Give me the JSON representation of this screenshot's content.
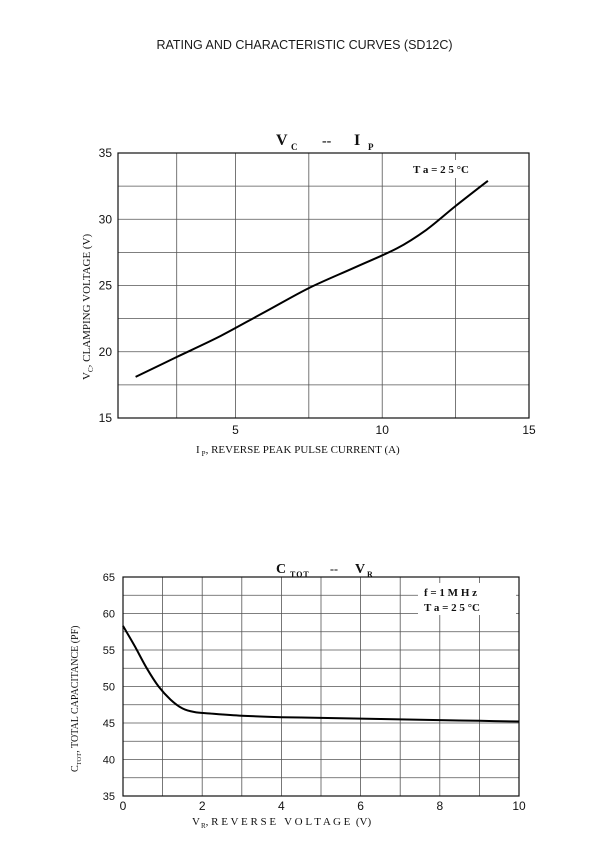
{
  "page": {
    "title": "RATING AND CHARACTERISTIC CURVES (SD12C)"
  },
  "chart_data": [
    {
      "type": "line",
      "title": {
        "main_v": "V",
        "sub_c": "C",
        "dash": "--",
        "main_i": "I",
        "sub_p": "P"
      },
      "annotation": "T a = 2 5 °C",
      "xlabel": {
        "main": "I",
        "sub": "P",
        "rest": ", REVERSE PEAK PULSE CURRENT (A)"
      },
      "ylabel": {
        "main": "V",
        "sub": "C",
        "rest": ", CLAMPING VOLTAGE (V)"
      },
      "xlim": [
        1,
        15
      ],
      "ylim": [
        15,
        35
      ],
      "x_ticks": [
        5,
        10,
        15
      ],
      "y_ticks": [
        15,
        20,
        25,
        30,
        35
      ],
      "x_grid": [
        3,
        5,
        7.5,
        10,
        12.5
      ],
      "y_grid": [
        17.5,
        20,
        22.5,
        25,
        27.5,
        30,
        32.5
      ],
      "series": [
        {
          "x": [
            1.6,
            3.0,
            4.5,
            6.0,
            7.5,
            9.0,
            10.5,
            11.5,
            12.5,
            13.6
          ],
          "y": [
            18.1,
            19.6,
            21.2,
            23.0,
            24.8,
            26.3,
            27.8,
            29.2,
            31.0,
            32.9
          ]
        }
      ]
    },
    {
      "type": "line",
      "title": {
        "main": "C",
        "sub": "TOT",
        "dash": "--",
        "main2": "V",
        "sub2": "R"
      },
      "annotations": [
        "f = 1 M H z",
        "T a = 2 5 °C"
      ],
      "xlabel": {
        "main": "V",
        "sub": "R",
        "rest": ", R E V E R S E   V O L T A G E  (V)"
      },
      "ylabel": {
        "main": "C",
        "sub": "TOT",
        "rest": ", TOTAL CAPACITANCE (PF)"
      },
      "xlim": [
        0,
        10
      ],
      "ylim": [
        35,
        65
      ],
      "x_ticks": [
        0,
        2,
        4,
        6,
        8,
        10
      ],
      "y_ticks": [
        35,
        40,
        45,
        50,
        55,
        60,
        65
      ],
      "x_grid": [
        1,
        2,
        3,
        4,
        5,
        6,
        7,
        8,
        9
      ],
      "y_grid": [
        37.5,
        40,
        42.5,
        45,
        47.5,
        50,
        52.5,
        55,
        57.5,
        60,
        62.5
      ],
      "series": [
        {
          "x": [
            0,
            0.3,
            0.6,
            0.9,
            1.2,
            1.5,
            1.8,
            2.2,
            3,
            4,
            5,
            6,
            7,
            8,
            9,
            10
          ],
          "y": [
            58.3,
            55.5,
            52.5,
            50.0,
            48.2,
            47.0,
            46.5,
            46.3,
            46.0,
            45.8,
            45.7,
            45.6,
            45.5,
            45.4,
            45.3,
            45.2
          ]
        }
      ]
    }
  ]
}
